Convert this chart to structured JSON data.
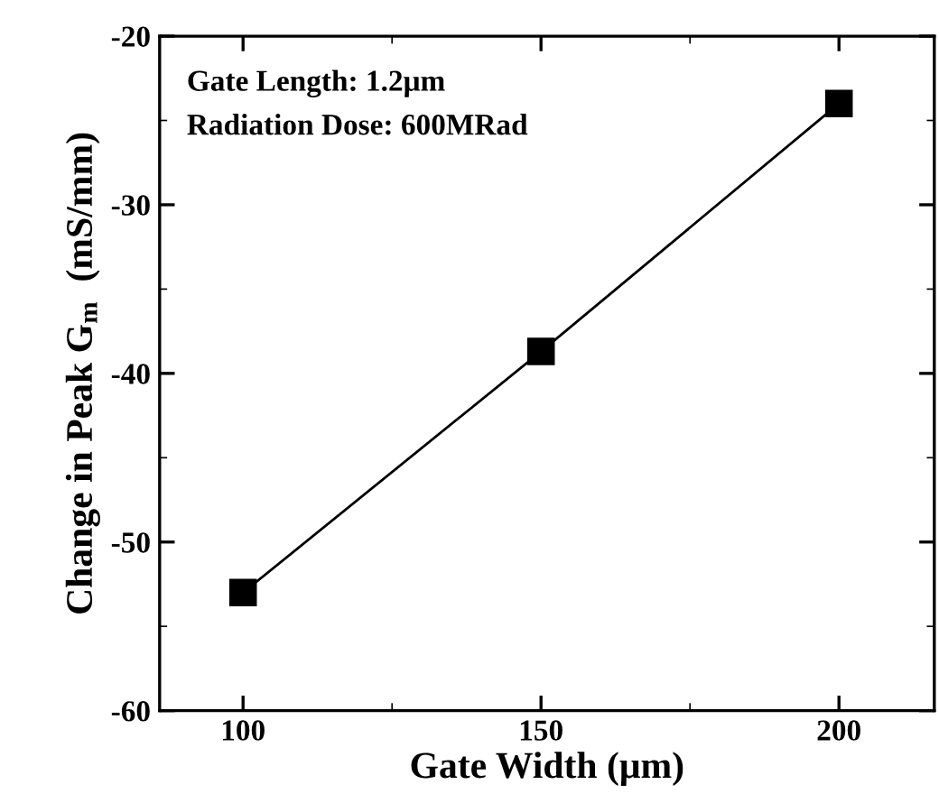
{
  "chart_data": {
    "type": "line",
    "x": [
      100,
      150,
      200
    ],
    "series": [
      {
        "color": "#000000",
        "values": [
          -53,
          -38.7,
          -24
        ]
      }
    ],
    "xlabel": "Gate Width (μm)",
    "ylabel": "Change in Peak G$_{m}$  (mS/mm)",
    "annotations": [
      "Gate Length: 1.2μm",
      "Radiation Dose: 600MRad"
    ],
    "xlim": [
      86,
      216
    ],
    "xticks": [
      100,
      150,
      200
    ],
    "ylim": [
      -60,
      -20
    ],
    "yticks": [
      -60,
      -50,
      -40,
      -30,
      -20
    ],
    "marker": "square",
    "line_style": "solid",
    "grid": false,
    "legend": false
  }
}
